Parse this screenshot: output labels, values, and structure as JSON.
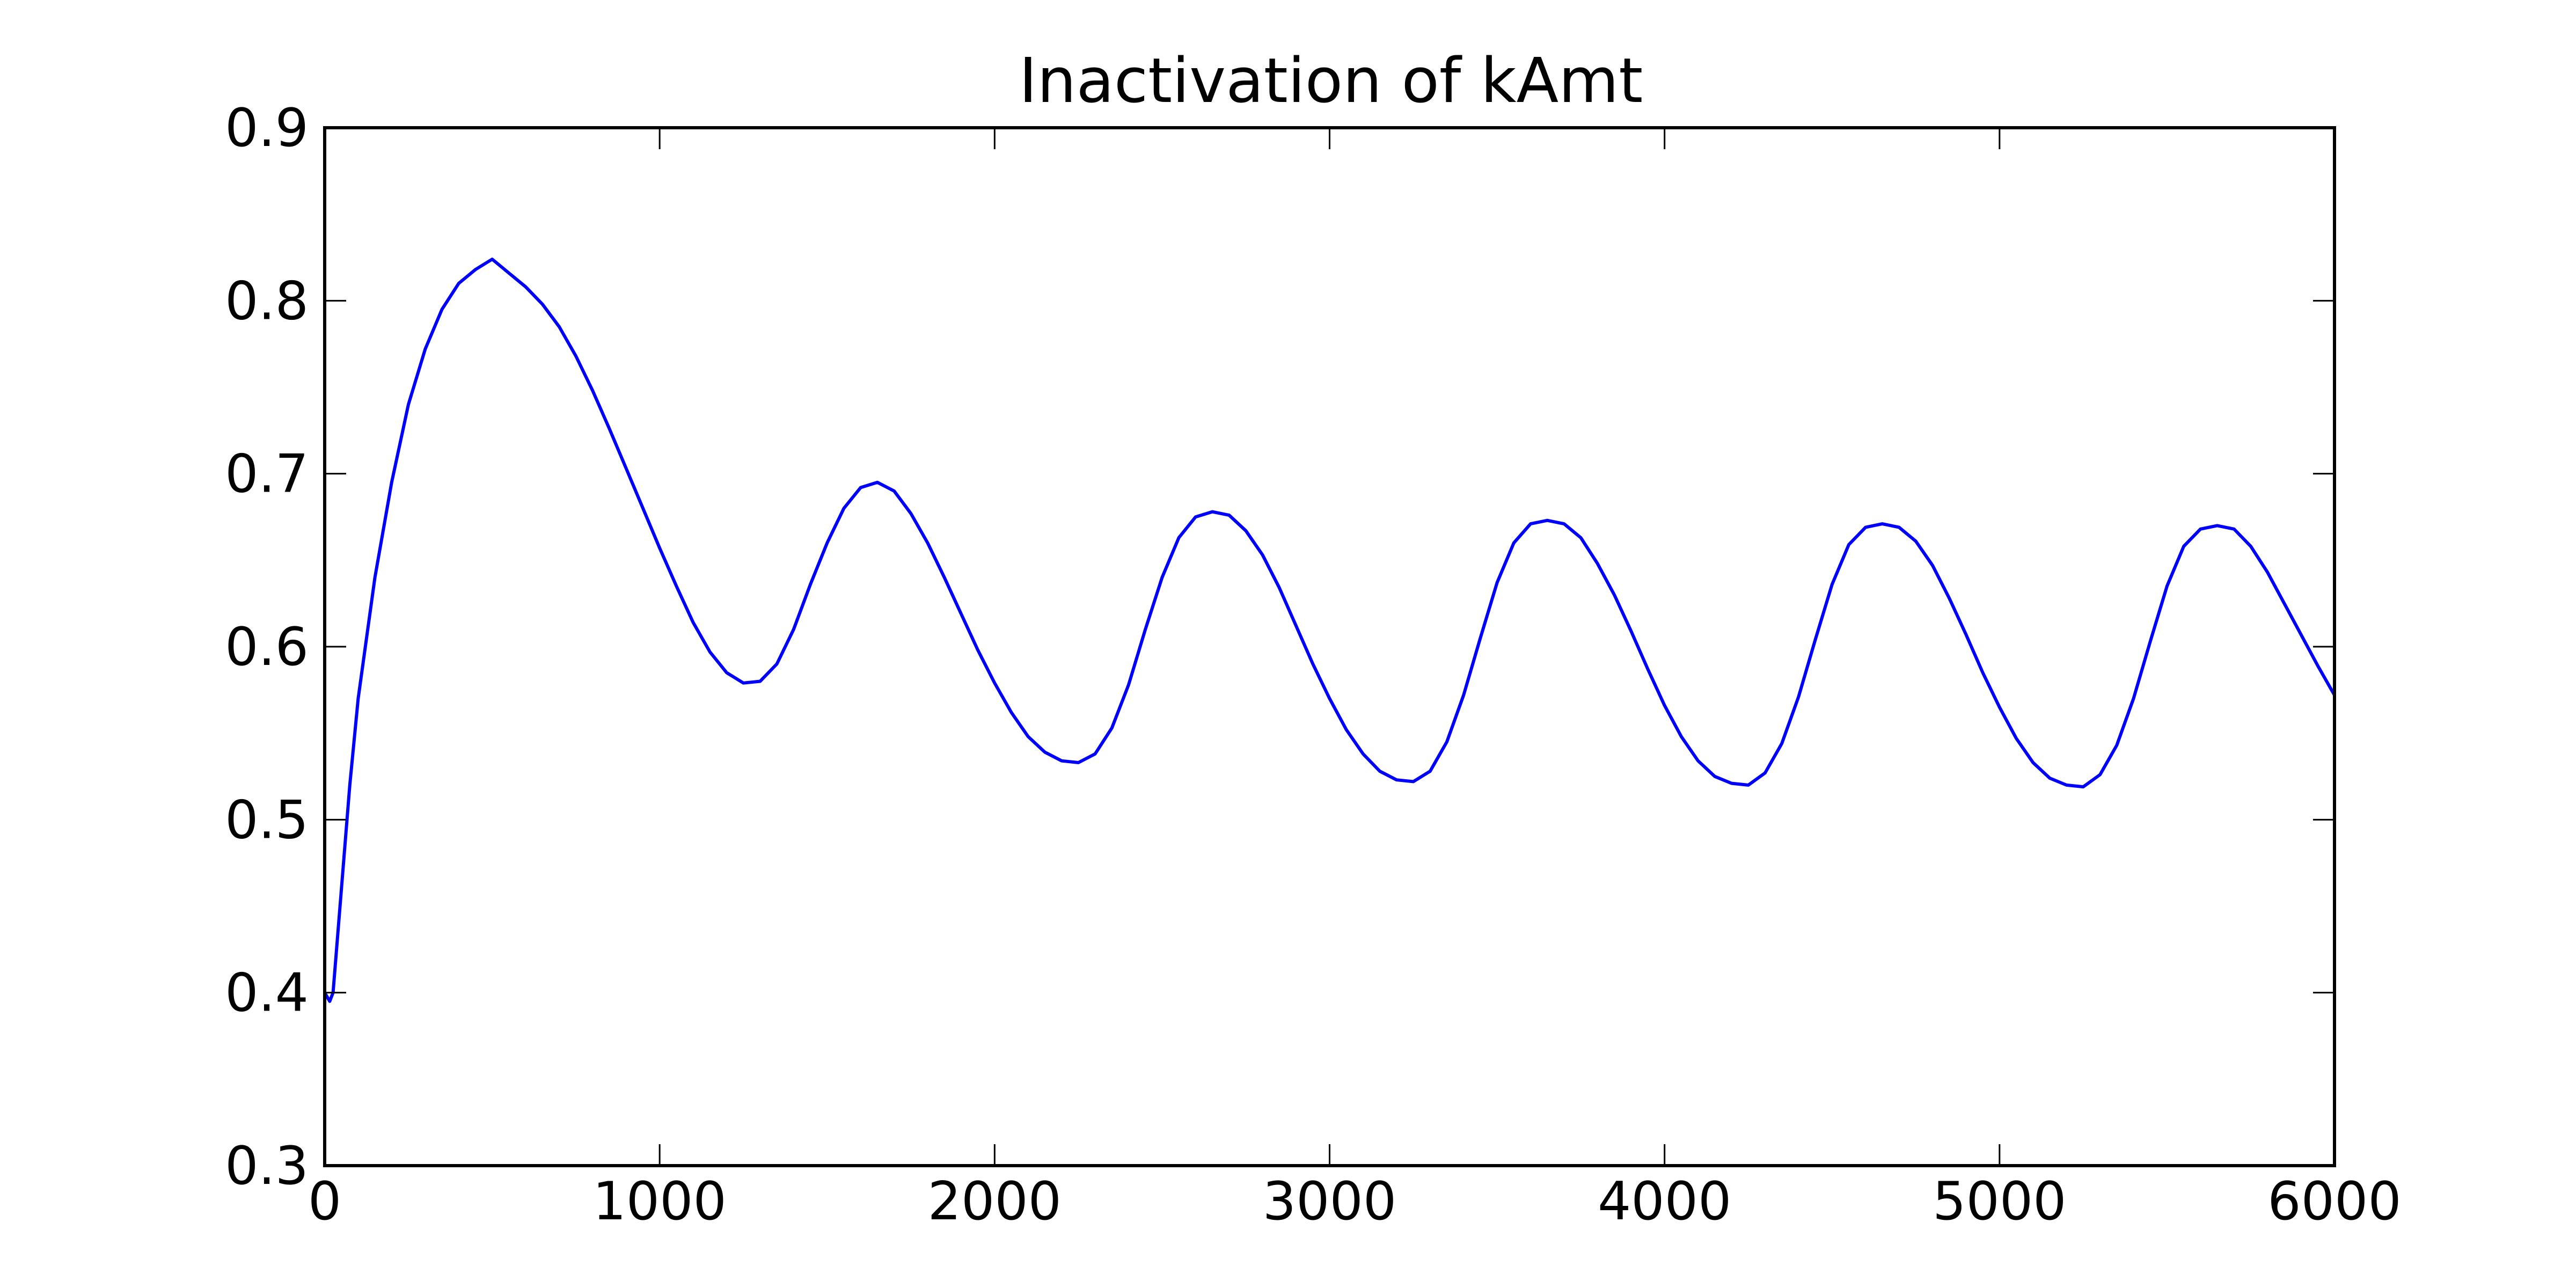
{
  "chart_data": {
    "type": "line",
    "title": "Inactivation of kAmt",
    "xlabel": "",
    "ylabel": "",
    "xlim": [
      0,
      6000
    ],
    "ylim": [
      0.3,
      0.9
    ],
    "grid": false,
    "x_ticks": [
      "0",
      "1000",
      "2000",
      "3000",
      "4000",
      "5000",
      "6000"
    ],
    "y_ticks": [
      "0.3",
      "0.4",
      "0.5",
      "0.6",
      "0.7",
      "0.8",
      "0.9"
    ],
    "series": [
      {
        "color": "#0000ff",
        "points": [
          [
            0,
            0.4
          ],
          [
            15,
            0.395
          ],
          [
            25,
            0.4
          ],
          [
            50,
            0.46
          ],
          [
            75,
            0.52
          ],
          [
            100,
            0.57
          ],
          [
            150,
            0.64
          ],
          [
            200,
            0.695
          ],
          [
            250,
            0.74
          ],
          [
            300,
            0.772
          ],
          [
            350,
            0.795
          ],
          [
            400,
            0.81
          ],
          [
            450,
            0.818
          ],
          [
            500,
            0.824
          ],
          [
            550,
            0.816
          ],
          [
            600,
            0.808
          ],
          [
            650,
            0.798
          ],
          [
            700,
            0.785
          ],
          [
            750,
            0.768
          ],
          [
            800,
            0.748
          ],
          [
            850,
            0.726
          ],
          [
            900,
            0.703
          ],
          [
            950,
            0.68
          ],
          [
            1000,
            0.657
          ],
          [
            1050,
            0.635
          ],
          [
            1100,
            0.614
          ],
          [
            1150,
            0.597
          ],
          [
            1200,
            0.585
          ],
          [
            1250,
            0.579
          ],
          [
            1300,
            0.58
          ],
          [
            1350,
            0.59
          ],
          [
            1400,
            0.61
          ],
          [
            1450,
            0.636
          ],
          [
            1500,
            0.66
          ],
          [
            1550,
            0.68
          ],
          [
            1600,
            0.692
          ],
          [
            1650,
            0.695
          ],
          [
            1700,
            0.69
          ],
          [
            1750,
            0.677
          ],
          [
            1800,
            0.66
          ],
          [
            1850,
            0.64
          ],
          [
            1900,
            0.619
          ],
          [
            1950,
            0.598
          ],
          [
            2000,
            0.579
          ],
          [
            2050,
            0.562
          ],
          [
            2100,
            0.548
          ],
          [
            2150,
            0.539
          ],
          [
            2200,
            0.534
          ],
          [
            2250,
            0.533
          ],
          [
            2300,
            0.538
          ],
          [
            2350,
            0.553
          ],
          [
            2400,
            0.578
          ],
          [
            2450,
            0.61
          ],
          [
            2500,
            0.64
          ],
          [
            2550,
            0.663
          ],
          [
            2600,
            0.675
          ],
          [
            2650,
            0.678
          ],
          [
            2700,
            0.676
          ],
          [
            2750,
            0.667
          ],
          [
            2800,
            0.653
          ],
          [
            2850,
            0.634
          ],
          [
            2900,
            0.612
          ],
          [
            2950,
            0.59
          ],
          [
            3000,
            0.57
          ],
          [
            3050,
            0.552
          ],
          [
            3100,
            0.538
          ],
          [
            3150,
            0.528
          ],
          [
            3200,
            0.523
          ],
          [
            3250,
            0.522
          ],
          [
            3300,
            0.528
          ],
          [
            3350,
            0.545
          ],
          [
            3400,
            0.572
          ],
          [
            3450,
            0.605
          ],
          [
            3500,
            0.637
          ],
          [
            3550,
            0.66
          ],
          [
            3600,
            0.671
          ],
          [
            3650,
            0.673
          ],
          [
            3700,
            0.671
          ],
          [
            3750,
            0.663
          ],
          [
            3800,
            0.648
          ],
          [
            3850,
            0.63
          ],
          [
            3900,
            0.609
          ],
          [
            3950,
            0.587
          ],
          [
            4000,
            0.566
          ],
          [
            4050,
            0.548
          ],
          [
            4100,
            0.534
          ],
          [
            4150,
            0.525
          ],
          [
            4200,
            0.521
          ],
          [
            4250,
            0.52
          ],
          [
            4300,
            0.527
          ],
          [
            4350,
            0.544
          ],
          [
            4400,
            0.571
          ],
          [
            4450,
            0.604
          ],
          [
            4500,
            0.636
          ],
          [
            4550,
            0.659
          ],
          [
            4600,
            0.669
          ],
          [
            4650,
            0.671
          ],
          [
            4700,
            0.669
          ],
          [
            4750,
            0.661
          ],
          [
            4800,
            0.647
          ],
          [
            4850,
            0.628
          ],
          [
            4900,
            0.607
          ],
          [
            4950,
            0.585
          ],
          [
            5000,
            0.565
          ],
          [
            5050,
            0.547
          ],
          [
            5100,
            0.533
          ],
          [
            5150,
            0.524
          ],
          [
            5200,
            0.52
          ],
          [
            5250,
            0.519
          ],
          [
            5300,
            0.526
          ],
          [
            5350,
            0.543
          ],
          [
            5400,
            0.57
          ],
          [
            5450,
            0.603
          ],
          [
            5500,
            0.635
          ],
          [
            5550,
            0.658
          ],
          [
            5600,
            0.668
          ],
          [
            5650,
            0.67
          ],
          [
            5700,
            0.668
          ],
          [
            5750,
            0.658
          ],
          [
            5800,
            0.643
          ],
          [
            5850,
            0.625
          ],
          [
            5900,
            0.607
          ],
          [
            5950,
            0.589
          ],
          [
            6000,
            0.572
          ]
        ]
      }
    ]
  }
}
